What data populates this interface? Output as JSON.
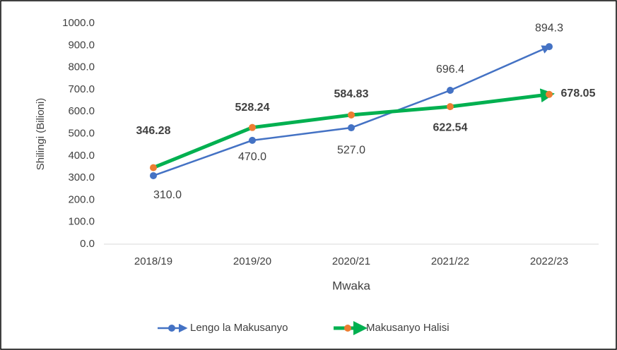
{
  "chart_data": {
    "type": "line",
    "categories": [
      "2018/19",
      "2019/20",
      "2020/21",
      "2021/22",
      "2022/23"
    ],
    "series": [
      {
        "name": "Lengo la Makusanyo",
        "color": "#4472c4",
        "values": [
          310.0,
          470.0,
          527.0,
          696.4,
          894.3
        ],
        "value_labels": [
          "310.0",
          "470.0",
          "527.0",
          "696.4",
          "894.3"
        ]
      },
      {
        "name": "Makusanyo Halisi",
        "color": "#00b050",
        "marker_color": "#ed7d31",
        "values": [
          346.28,
          528.24,
          584.83,
          622.54,
          678.05
        ]
      }
    ],
    "ylim": [
      0,
      1000
    ],
    "yticks": [
      {
        "value": 0,
        "label": "0.0"
      },
      {
        "value": 100,
        "label": "100.0"
      },
      {
        "value": 200,
        "label": "200.0"
      },
      {
        "value": 300,
        "label": "300.0"
      },
      {
        "value": 400,
        "label": "400.0"
      },
      {
        "value": 500,
        "label": "500.0"
      },
      {
        "value": 600,
        "label": "600.0"
      },
      {
        "value": 700,
        "label": "700.0"
      },
      {
        "value": 800,
        "label": "800.0"
      },
      {
        "value": 900,
        "label": "900.0"
      },
      {
        "value": 1000,
        "label": "1000.0"
      }
    ],
    "ylabel": "Shilingi (Bilioni)",
    "xlabel": "Mwaka",
    "legend": "bottom"
  }
}
